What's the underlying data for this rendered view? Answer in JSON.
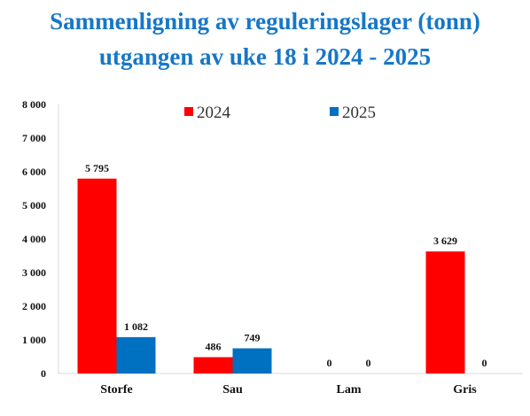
{
  "chart_data": {
    "type": "bar",
    "title": "Sammenligning av reguleringslager (tonn)",
    "subtitle": "utgangen av uke 18 i 2024 - 2025",
    "categories": [
      "Storfe",
      "Sau",
      "Lam",
      "Gris"
    ],
    "series": [
      {
        "name": "2024",
        "values": [
          5795,
          486,
          0,
          3629
        ],
        "labels": [
          "5 795",
          "486",
          "0",
          "3 629"
        ],
        "color": "#ff0000"
      },
      {
        "name": "2025",
        "values": [
          1082,
          749,
          0,
          0
        ],
        "labels": [
          "1 082",
          "749",
          "0",
          "0"
        ],
        "color": "#0070c0"
      }
    ],
    "ylim": [
      0,
      8000
    ],
    "yticks": [
      0,
      1000,
      2000,
      3000,
      4000,
      5000,
      6000,
      7000,
      8000
    ],
    "ytick_labels": [
      "0",
      "1 000",
      "2 000",
      "3 000",
      "4 000",
      "5 000",
      "6 000",
      "7 000",
      "8 000"
    ],
    "grid": false,
    "legend_position": "top-center"
  }
}
